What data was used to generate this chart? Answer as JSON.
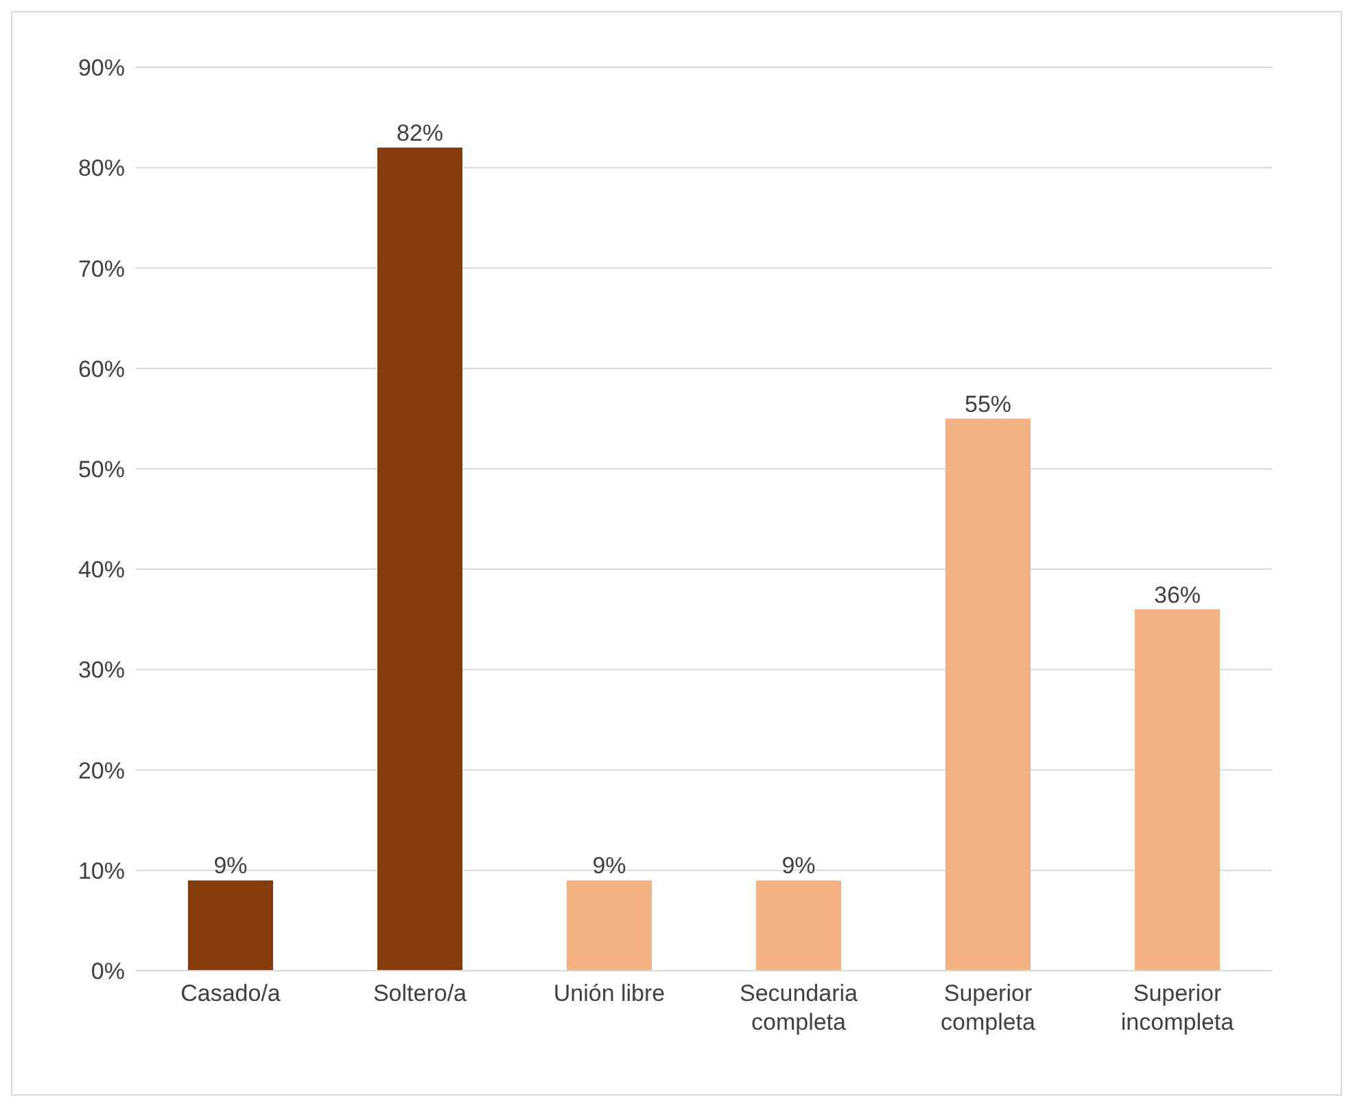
{
  "chart_data": {
    "type": "bar",
    "categories": [
      "Casado/a",
      "Soltero/a",
      "Unión libre",
      "Secundaria completa",
      "Superior completa",
      "Superior incompleta"
    ],
    "values": [
      9,
      82,
      9,
      9,
      55,
      36
    ],
    "colors": [
      "#843c0c",
      "#843c0c",
      "#f4b183",
      "#f4b183",
      "#f4b183",
      "#f4b183"
    ],
    "value_labels": [
      "9%",
      "82%",
      "9%",
      "9%",
      "55%",
      "36%"
    ],
    "ylim": [
      0,
      90
    ],
    "yticks": [
      {
        "value": 0,
        "label": "0%"
      },
      {
        "value": 10,
        "label": "10%"
      },
      {
        "value": 20,
        "label": "20%"
      },
      {
        "value": 30,
        "label": "30%"
      },
      {
        "value": 40,
        "label": "40%"
      },
      {
        "value": 50,
        "label": "50%"
      },
      {
        "value": 60,
        "label": "60%"
      },
      {
        "value": 70,
        "label": "70%"
      },
      {
        "value": 80,
        "label": "80%"
      },
      {
        "value": 90,
        "label": "90%"
      }
    ],
    "grid": "y",
    "legend": false
  }
}
